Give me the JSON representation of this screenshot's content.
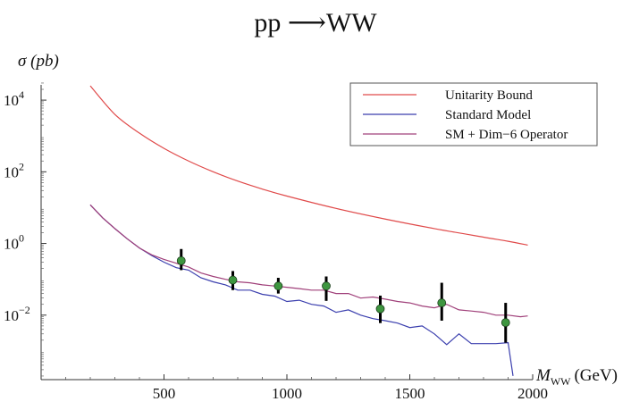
{
  "chart_data": {
    "type": "line",
    "title": "pp ⟶WW",
    "ylabel": "σ (pb)",
    "xlabel": {
      "symbol": "M",
      "subscript": "WW",
      "unit": "(GeV)"
    },
    "y_scale": "log10",
    "xlim": [
      0,
      2000
    ],
    "ylim_log10": [
      -3.8,
      4.8
    ],
    "x_ticks": [
      500,
      1000,
      1500,
      2000
    ],
    "y_ticks": [
      {
        "exp": 4,
        "base": "10",
        "sup": "4"
      },
      {
        "exp": 2,
        "base": "10",
        "sup": "2"
      },
      {
        "exp": 0,
        "base": "10",
        "sup": "0"
      },
      {
        "exp": -2,
        "base": "10",
        "sup": "−2"
      }
    ],
    "legend": {
      "position": "top-right",
      "entries": [
        {
          "name": "Unitarity Bound",
          "color": "#e04a4a"
        },
        {
          "name": "Standard Model",
          "color": "#3b3fae"
        },
        {
          "name": "SM + Dim−6 Operator",
          "color": "#a0407a"
        }
      ]
    },
    "series": [
      {
        "name": "Unitarity Bound",
        "color": "#e04a4a",
        "style": "smooth",
        "x": [
          200,
          300,
          400,
          500,
          600,
          700,
          800,
          900,
          1000,
          1200,
          1400,
          1600,
          1800,
          1900,
          1980
        ],
        "y": [
          25000,
          4000,
          1200,
          450,
          200,
          100,
          55,
          33,
          21,
          9.5,
          4.8,
          2.6,
          1.5,
          1.15,
          0.9
        ]
      },
      {
        "name": "Standard Model",
        "color": "#3b3fae",
        "style": "jagged",
        "x": [
          200,
          250,
          300,
          350,
          400,
          450,
          500,
          550,
          600,
          650,
          700,
          750,
          800,
          850,
          900,
          950,
          1000,
          1050,
          1100,
          1150,
          1200,
          1250,
          1300,
          1350,
          1400,
          1450,
          1500,
          1550,
          1600,
          1650,
          1700,
          1750,
          1800,
          1850,
          1900,
          1920
        ],
        "y": [
          12,
          5.2,
          2.6,
          1.35,
          0.75,
          0.46,
          0.3,
          0.21,
          0.18,
          0.11,
          0.085,
          0.07,
          0.05,
          0.05,
          0.038,
          0.034,
          0.024,
          0.026,
          0.02,
          0.018,
          0.012,
          0.014,
          0.01,
          0.008,
          0.007,
          0.006,
          0.0045,
          0.005,
          0.003,
          0.0015,
          0.003,
          0.0016,
          0.0016,
          0.0016,
          0.0017,
          0.0002
        ]
      },
      {
        "name": "SM + Dim−6 Operator",
        "color": "#a0407a",
        "style": "jagged",
        "x": [
          200,
          250,
          300,
          350,
          400,
          450,
          500,
          550,
          600,
          650,
          700,
          750,
          800,
          850,
          900,
          950,
          1000,
          1050,
          1100,
          1150,
          1200,
          1250,
          1300,
          1350,
          1400,
          1450,
          1500,
          1550,
          1600,
          1650,
          1700,
          1750,
          1800,
          1850,
          1900,
          1950,
          1980
        ],
        "y": [
          12,
          5.2,
          2.6,
          1.35,
          0.75,
          0.48,
          0.36,
          0.28,
          0.22,
          0.15,
          0.12,
          0.1,
          0.085,
          0.08,
          0.07,
          0.065,
          0.06,
          0.055,
          0.05,
          0.05,
          0.04,
          0.04,
          0.03,
          0.032,
          0.028,
          0.024,
          0.022,
          0.018,
          0.016,
          0.02,
          0.014,
          0.013,
          0.012,
          0.01,
          0.01,
          0.009,
          0.0095
        ]
      }
    ],
    "markers": {
      "name": "Data points with error bars",
      "fill": "#3e9640",
      "points": [
        {
          "x": 570,
          "y": 0.33,
          "y_low": 0.18,
          "y_high": 0.7
        },
        {
          "x": 780,
          "y": 0.095,
          "y_low": 0.05,
          "y_high": 0.17
        },
        {
          "x": 965,
          "y": 0.065,
          "y_low": 0.04,
          "y_high": 0.11
        },
        {
          "x": 1160,
          "y": 0.065,
          "y_low": 0.025,
          "y_high": 0.12
        },
        {
          "x": 1380,
          "y": 0.015,
          "y_low": 0.006,
          "y_high": 0.035
        },
        {
          "x": 1630,
          "y": 0.022,
          "y_low": 0.007,
          "y_high": 0.08
        },
        {
          "x": 1890,
          "y": 0.0062,
          "y_low": 0.0017,
          "y_high": 0.022
        }
      ]
    }
  }
}
